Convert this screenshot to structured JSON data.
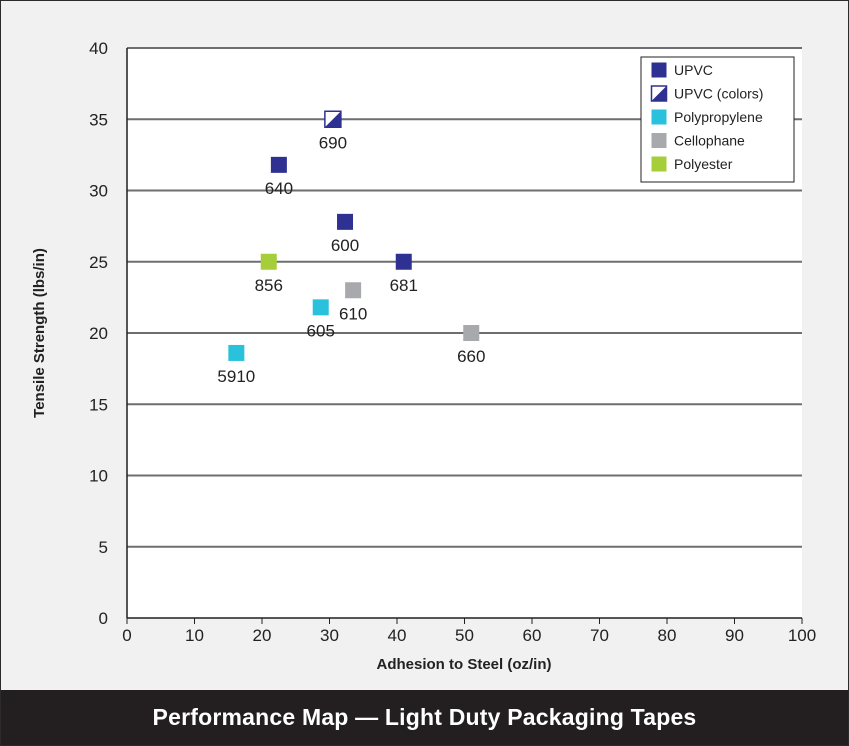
{
  "title": "Performance Map — Light Duty Packaging Tapes",
  "colors": {
    "upvc": "#2e3192",
    "polypropylene": "#29c1dc",
    "cellophane": "#a7a9ac",
    "polyester": "#a6ce39",
    "grid": "#6d6e71",
    "footer_bg": "#231f20"
  },
  "chart_data": {
    "type": "scatter",
    "xlabel": "Adhesion to Steel (oz/in)",
    "ylabel": "Tensile Strength (lbs/in)",
    "xlim": [
      0,
      100
    ],
    "ylim": [
      0,
      40
    ],
    "xticks": [
      0,
      10,
      20,
      30,
      40,
      50,
      60,
      70,
      80,
      90,
      100
    ],
    "yticks": [
      0,
      5,
      10,
      15,
      20,
      25,
      30,
      35,
      40
    ],
    "grid": "horizontal",
    "legend_position": "top-right",
    "series": [
      {
        "name": "UPVC",
        "key": "upvc",
        "marker": "square",
        "points": [
          {
            "label": "640",
            "x": 22.5,
            "y": 31.8
          },
          {
            "label": "600",
            "x": 32.3,
            "y": 27.8
          },
          {
            "label": "681",
            "x": 41,
            "y": 25
          }
        ]
      },
      {
        "name": "UPVC (colors)",
        "key": "upvc",
        "marker": "half-square",
        "points": [
          {
            "label": "690",
            "x": 30.5,
            "y": 35
          }
        ]
      },
      {
        "name": "Polypropylene",
        "key": "polypropylene",
        "marker": "square",
        "points": [
          {
            "label": "605",
            "x": 28.7,
            "y": 21.8
          },
          {
            "label": "5910",
            "x": 16.2,
            "y": 18.6
          }
        ]
      },
      {
        "name": "Cellophane",
        "key": "cellophane",
        "marker": "square",
        "points": [
          {
            "label": "610",
            "x": 33.5,
            "y": 23
          },
          {
            "label": "660",
            "x": 51,
            "y": 20
          }
        ]
      },
      {
        "name": "Polyester",
        "key": "polyester",
        "marker": "square",
        "points": [
          {
            "label": "856",
            "x": 21,
            "y": 25
          }
        ]
      }
    ]
  }
}
